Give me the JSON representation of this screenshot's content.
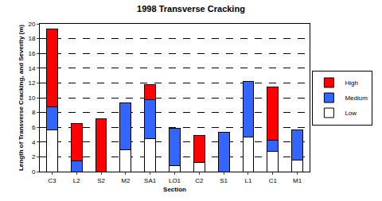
{
  "chart_data": {
    "type": "bar",
    "title": "1998 Transverse Cracking",
    "x_label": "Section",
    "y_label": "Length of Transverse Cracking, and Severity (m)",
    "categories": [
      "C3",
      "L2",
      "S2",
      "M2",
      "SA1",
      "LO1",
      "C2",
      "S1",
      "L1",
      "C1",
      "M1"
    ],
    "series": [
      {
        "name": "Low",
        "color": "#ffffff",
        "values": [
          5.6,
          0,
          0,
          3.0,
          4.5,
          0.8,
          1.2,
          0,
          4.7,
          2.7,
          1.6
        ]
      },
      {
        "name": "Medium",
        "color": "#3366ff",
        "values": [
          3.2,
          1.5,
          0,
          6.3,
          5.2,
          5.1,
          0,
          5.3,
          7.5,
          1.5,
          4.0
        ]
      },
      {
        "name": "High",
        "color": "#ff0000",
        "values": [
          10.5,
          5.0,
          7.2,
          0,
          2.1,
          0,
          3.7,
          0,
          0,
          7.3,
          0
        ]
      }
    ],
    "stacked": true,
    "ylim": [
      0,
      20
    ],
    "yticks": [
      0,
      2,
      4,
      6,
      8,
      10,
      12,
      14,
      16,
      18,
      20
    ],
    "grid": true,
    "legend": "right"
  }
}
